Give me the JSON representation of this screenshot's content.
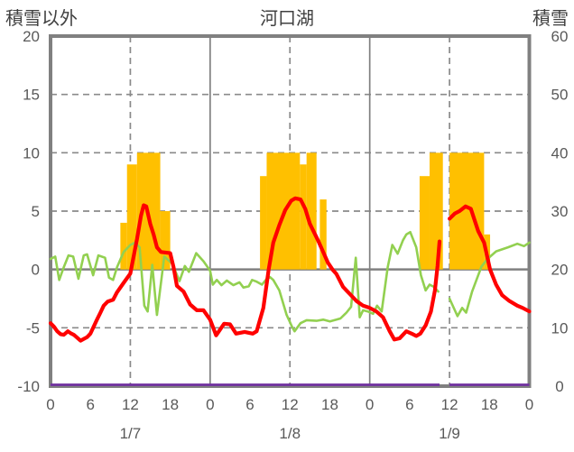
{
  "header": {
    "left_axis_title": "積雪以外",
    "chart_title": "河口湖",
    "right_axis_title": "積雪"
  },
  "chart_data": {
    "type": "combo-bar-line",
    "title": "河口湖",
    "left_axis": {
      "title": "積雪以外",
      "min": -10,
      "max": 20,
      "ticks": [
        20,
        15,
        10,
        5,
        0,
        -5,
        -10
      ]
    },
    "right_axis": {
      "title": "積雪",
      "min": 0,
      "max": 60,
      "ticks": [
        60,
        50,
        40,
        30,
        20,
        10,
        0
      ]
    },
    "x_axis": {
      "total_hours": 72,
      "tick_interval_hours": 6,
      "tick_labels_cycle": [
        "0",
        "6",
        "12",
        "18"
      ],
      "day_labels": [
        "1/7",
        "1/8",
        "1/9"
      ],
      "solid_gridline_hours": [
        24,
        48
      ],
      "dashed_gridline_hours": [
        12,
        36,
        60
      ],
      "dashed_gridline_values": [
        15,
        10,
        5,
        -5
      ],
      "zero_line_value": 0
    },
    "data_gap_hours": [
      58.5,
      60
    ],
    "grid": {
      "dashed": true,
      "legend": "none"
    },
    "colors": {
      "bars": "#FFC000",
      "red_line": "#FF0000",
      "green_line": "#92D050",
      "purple_line": "#7030A0",
      "axis": "#808080",
      "grid": "#8a8a8a",
      "text": "#595959",
      "header_text": "#404040"
    },
    "series": {
      "orange_bars": {
        "axis": "left",
        "segments": [
          [
            10.5,
            11.5,
            4
          ],
          [
            11.5,
            13,
            9
          ],
          [
            13,
            16.5,
            10
          ],
          [
            16.5,
            18,
            5
          ],
          [
            31.5,
            32.5,
            8
          ],
          [
            32.5,
            37.5,
            10
          ],
          [
            37.5,
            38.5,
            9
          ],
          [
            38.5,
            40,
            10
          ],
          [
            40.5,
            41.5,
            6
          ],
          [
            55.5,
            57,
            8
          ],
          [
            57,
            59,
            10
          ],
          [
            60,
            65.2,
            10
          ],
          [
            65.2,
            66.1,
            3
          ]
        ]
      },
      "red_line": {
        "axis": "left",
        "segments": [
          [
            [
              0,
              -4.6
            ],
            [
              0.5,
              -4.9
            ],
            [
              1,
              -5.3
            ],
            [
              1.5,
              -5.55
            ],
            [
              2,
              -5.6
            ],
            [
              2.6,
              -5.3
            ],
            [
              3,
              -5.45
            ],
            [
              3.5,
              -5.6
            ],
            [
              4.5,
              -6.1
            ],
            [
              5.5,
              -5.8
            ],
            [
              6,
              -5.5
            ],
            [
              6.9,
              -4.4
            ],
            [
              7.5,
              -3.7
            ],
            [
              8,
              -3.1
            ],
            [
              8.6,
              -2.75
            ],
            [
              9.4,
              -2.6
            ],
            [
              10,
              -1.95
            ],
            [
              11,
              -1.15
            ],
            [
              12,
              -0.35
            ],
            [
              13,
              2.6
            ],
            [
              13.6,
              4.6
            ],
            [
              14,
              5.5
            ],
            [
              14.4,
              5.4
            ],
            [
              15,
              3.9
            ],
            [
              15.5,
              3.0
            ],
            [
              16,
              1.9
            ],
            [
              16.6,
              1.5
            ],
            [
              18,
              1.4
            ],
            [
              18.5,
              0.2
            ],
            [
              19,
              -1.4
            ],
            [
              20,
              -1.9
            ],
            [
              21,
              -3.0
            ],
            [
              22,
              -3.5
            ],
            [
              23,
              -3.5
            ],
            [
              24,
              -4.3
            ],
            [
              24.9,
              -5.65
            ],
            [
              26.1,
              -4.65
            ],
            [
              27,
              -4.7
            ],
            [
              27.9,
              -5.5
            ],
            [
              29.2,
              -5.35
            ],
            [
              30.4,
              -5.5
            ],
            [
              31,
              -5.3
            ],
            [
              32,
              -3.3
            ],
            [
              32.8,
              0
            ],
            [
              33.5,
              2.3
            ],
            [
              34.4,
              3.8
            ],
            [
              35.3,
              5.1
            ],
            [
              36.2,
              5.9
            ],
            [
              36.8,
              6.1
            ],
            [
              37.6,
              6.0
            ],
            [
              38.3,
              5.2
            ],
            [
              39,
              3.9
            ],
            [
              40.3,
              2.4
            ],
            [
              41,
              1.5
            ],
            [
              41.7,
              0.6
            ],
            [
              42.4,
              0
            ],
            [
              43,
              -0.4
            ],
            [
              44,
              -1.5
            ],
            [
              45,
              -2.1
            ],
            [
              46,
              -2.7
            ],
            [
              47,
              -3.1
            ],
            [
              48,
              -3.3
            ],
            [
              49,
              -3.6
            ],
            [
              50,
              -4.1
            ],
            [
              51,
              -5.3
            ],
            [
              51.7,
              -6.0
            ],
            [
              52.5,
              -5.9
            ],
            [
              53.5,
              -5.3
            ],
            [
              54.3,
              -5.5
            ],
            [
              55,
              -5.7
            ],
            [
              55.6,
              -5.5
            ],
            [
              56.4,
              -4.8
            ],
            [
              57.2,
              -3.6
            ],
            [
              57.8,
              -1.8
            ],
            [
              58.2,
              0.3
            ],
            [
              58.5,
              2.4
            ]
          ],
          [
            [
              60,
              4.35
            ],
            [
              60.8,
              4.8
            ],
            [
              61.5,
              5.0
            ],
            [
              62.4,
              5.4
            ],
            [
              63.2,
              5.2
            ],
            [
              64.3,
              3.3
            ],
            [
              65.2,
              2.3
            ],
            [
              66.1,
              0.0
            ],
            [
              67,
              -1.3
            ],
            [
              67.9,
              -2.2
            ],
            [
              69,
              -2.7
            ],
            [
              70.2,
              -3.1
            ],
            [
              71,
              -3.3
            ],
            [
              72,
              -3.6
            ]
          ]
        ]
      },
      "green_line": {
        "axis": "left",
        "segments": [
          [
            [
              0,
              0.9
            ],
            [
              0.7,
              1.1
            ],
            [
              1.3,
              -0.9
            ],
            [
              2,
              0.2
            ],
            [
              2.7,
              1.2
            ],
            [
              3.4,
              1.1
            ],
            [
              4.2,
              -0.8
            ],
            [
              5,
              1.2
            ],
            [
              5.5,
              1.3
            ],
            [
              6.4,
              -0.5
            ],
            [
              7.2,
              1.2
            ],
            [
              8.2,
              1.0
            ],
            [
              8.8,
              -0.7
            ],
            [
              9.4,
              -0.9
            ],
            [
              10,
              0.2
            ],
            [
              11,
              1.5
            ],
            [
              12,
              2.1
            ],
            [
              12.7,
              2.3
            ],
            [
              13.4,
              1.9
            ],
            [
              14.1,
              -3.1
            ],
            [
              14.6,
              -3.6
            ],
            [
              15.3,
              0.4
            ],
            [
              16,
              -3.9
            ],
            [
              17.1,
              1.1
            ],
            [
              18.3,
              0.5
            ],
            [
              19.4,
              -1.0
            ],
            [
              20.2,
              0.3
            ],
            [
              20.8,
              -0.2
            ],
            [
              21.9,
              1.4
            ],
            [
              23,
              0.7
            ],
            [
              24,
              -0.1
            ],
            [
              24.4,
              -1.3
            ],
            [
              25,
              -0.9
            ],
            [
              25.7,
              -1.35
            ],
            [
              26.5,
              -0.95
            ],
            [
              27.5,
              -1.35
            ],
            [
              28.4,
              -1.1
            ],
            [
              29,
              -1.55
            ],
            [
              29.8,
              -1.45
            ],
            [
              30.3,
              -0.9
            ],
            [
              31,
              -1.05
            ],
            [
              31.8,
              -1.3
            ],
            [
              32.5,
              -0.8
            ],
            [
              33,
              -0.65
            ],
            [
              33.5,
              -0.9
            ],
            [
              34.4,
              -1.8
            ],
            [
              35.5,
              -3.9
            ],
            [
              36.3,
              -4.9
            ],
            [
              36.7,
              -5.3
            ],
            [
              37.6,
              -4.6
            ],
            [
              38.5,
              -4.35
            ],
            [
              40,
              -4.4
            ],
            [
              41,
              -4.3
            ],
            [
              42,
              -4.45
            ],
            [
              43,
              -4.3
            ],
            [
              43.6,
              -4.2
            ],
            [
              44.5,
              -3.7
            ],
            [
              45.2,
              -3.2
            ],
            [
              45.9,
              1.0
            ],
            [
              46.5,
              -4.1
            ],
            [
              47,
              -3.5
            ],
            [
              47.7,
              -3.6
            ],
            [
              48.5,
              -3.8
            ],
            [
              49.1,
              -3.1
            ],
            [
              49.8,
              -3.6
            ],
            [
              50.7,
              0.2
            ],
            [
              51.4,
              2.1
            ],
            [
              52.2,
              1.35
            ],
            [
              53,
              2.5
            ],
            [
              53.5,
              3.0
            ],
            [
              54.1,
              3.2
            ],
            [
              55,
              1.9
            ],
            [
              55.7,
              -0.5
            ],
            [
              56.4,
              -1.8
            ],
            [
              57,
              -1.3
            ],
            [
              57.7,
              -1.5
            ],
            [
              58.3,
              -1.9
            ]
          ],
          [
            [
              60,
              -2.5
            ],
            [
              61.2,
              -4.0
            ],
            [
              61.9,
              -3.3
            ],
            [
              62.5,
              -3.7
            ],
            [
              63.4,
              -1.9
            ],
            [
              64.8,
              0.25
            ],
            [
              65.7,
              0.9
            ],
            [
              67,
              1.55
            ],
            [
              68.8,
              1.9
            ],
            [
              70.2,
              2.2
            ],
            [
              71.2,
              2.0
            ],
            [
              72,
              2.3
            ]
          ]
        ]
      },
      "purple_line": {
        "axis": "right",
        "value": 0,
        "segments": [
          [
            0,
            58.5
          ],
          [
            60,
            72
          ]
        ]
      }
    }
  }
}
